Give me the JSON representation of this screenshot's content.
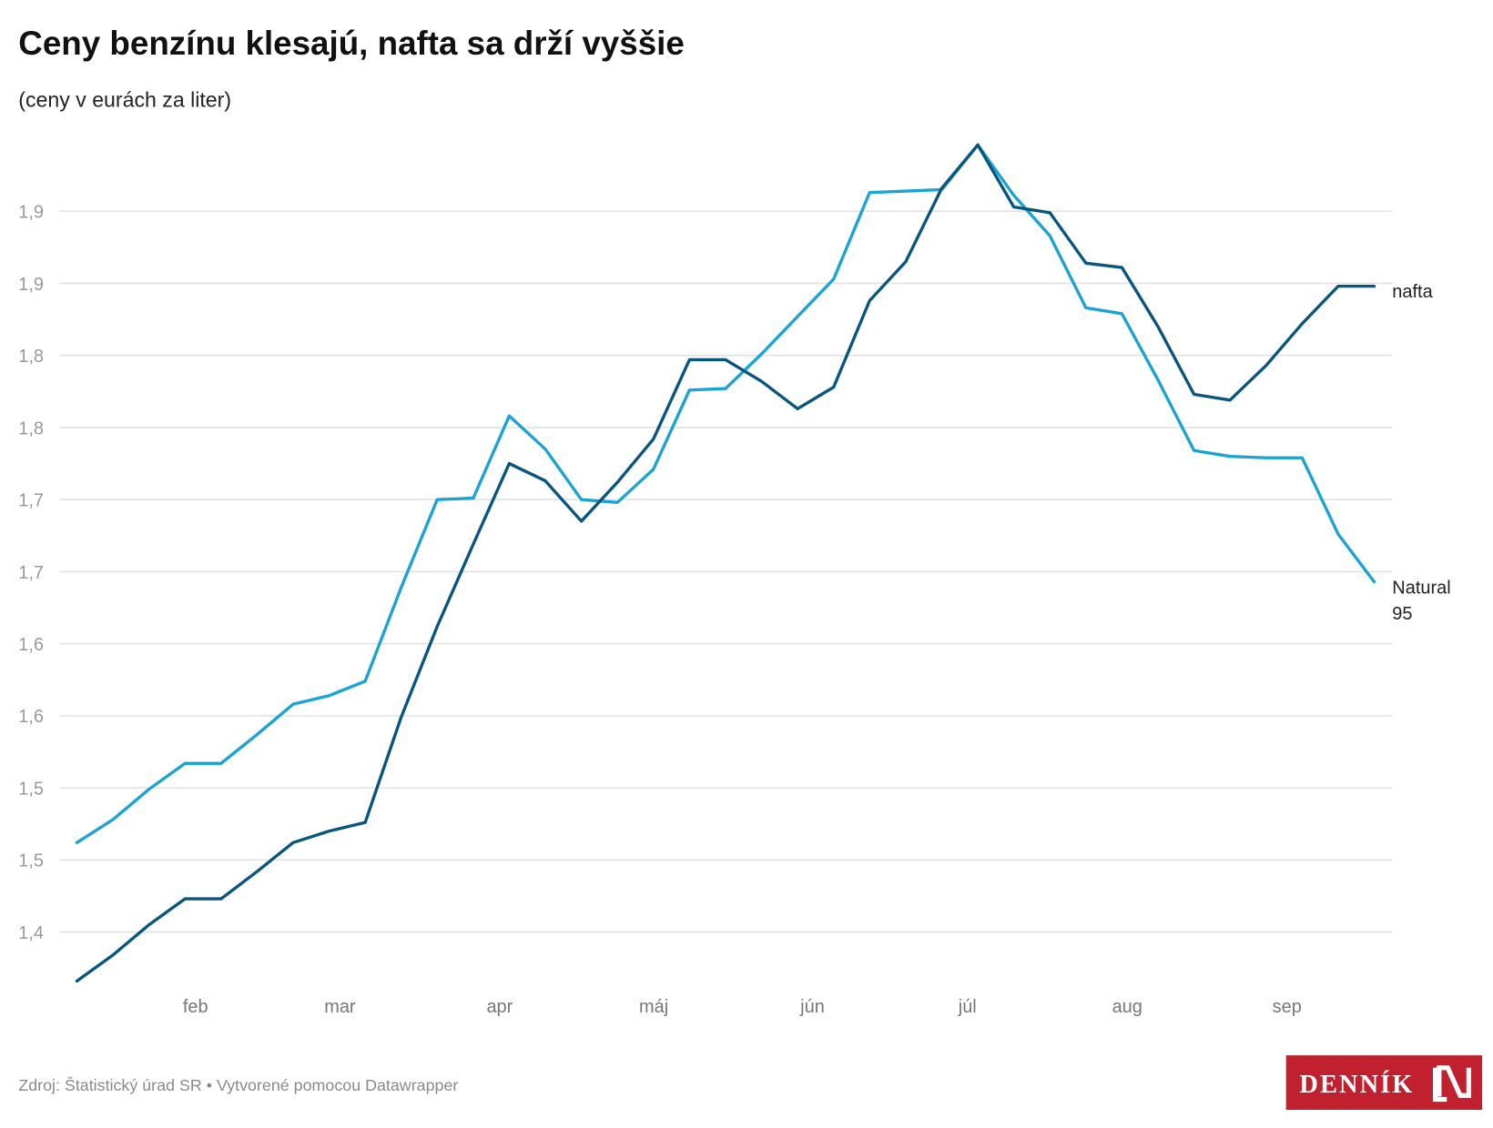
{
  "header": {
    "title": "Ceny benzínu klesajú, nafta sa drží vyššie",
    "subtitle": "(ceny v eurách za liter)"
  },
  "footer": {
    "source": "Zdroj: Štatistický úrad SR • Vytvorené pomocou Datawrapper"
  },
  "logo": {
    "text": "DENNÍK N",
    "color": "#c1202f"
  },
  "chart_data": {
    "type": "line",
    "title": "Ceny benzínu klesajú, nafta sa drží vyššie",
    "subtitle": "(ceny v eurách za liter)",
    "xlabel": "",
    "ylabel": "",
    "x_tick_labels": [
      "feb",
      "mar",
      "apr",
      "máj",
      "jún",
      "júl",
      "aug",
      "sep"
    ],
    "y_ticks": [
      1.4,
      1.45,
      1.5,
      1.55,
      1.6,
      1.65,
      1.7,
      1.75,
      1.8,
      1.85,
      1.9
    ],
    "y_tick_labels": [
      "1,4",
      "1,5",
      "1,5",
      "1,6",
      "1,6",
      "1,7",
      "1,7",
      "1,8",
      "1,8",
      "1,9",
      "1,9"
    ],
    "ylim": [
      1.4,
      1.9
    ],
    "grid": true,
    "legend": "direct labels at line ends (right)",
    "series": [
      {
        "name": "nafta",
        "color": "#08557f",
        "values": [
          1.366,
          1.384,
          1.405,
          1.423,
          1.423,
          1.442,
          1.462,
          1.47,
          1.476,
          1.549,
          1.612,
          1.669,
          1.725,
          1.713,
          1.685,
          1.712,
          1.742,
          1.797,
          1.797,
          1.782,
          1.763,
          1.778,
          1.838,
          1.865,
          1.916,
          1.946,
          1.903,
          1.899,
          1.864,
          1.861,
          1.82,
          1.773,
          1.769,
          1.793,
          1.822,
          1.848,
          1.848
        ]
      },
      {
        "name": "Natural 95",
        "name_lines": [
          "Natural",
          "95"
        ],
        "color": "#1aa3d3",
        "values": [
          1.462,
          1.478,
          1.499,
          1.517,
          1.517,
          1.537,
          1.558,
          1.564,
          1.574,
          1.639,
          1.7,
          1.701,
          1.758,
          1.735,
          1.7,
          1.698,
          1.721,
          1.776,
          1.777,
          1.801,
          1.827,
          1.853,
          1.913,
          1.914,
          1.915,
          1.946,
          1.911,
          1.883,
          1.833,
          1.829,
          1.783,
          1.734,
          1.73,
          1.729,
          1.729,
          1.676,
          1.643
        ]
      }
    ]
  }
}
